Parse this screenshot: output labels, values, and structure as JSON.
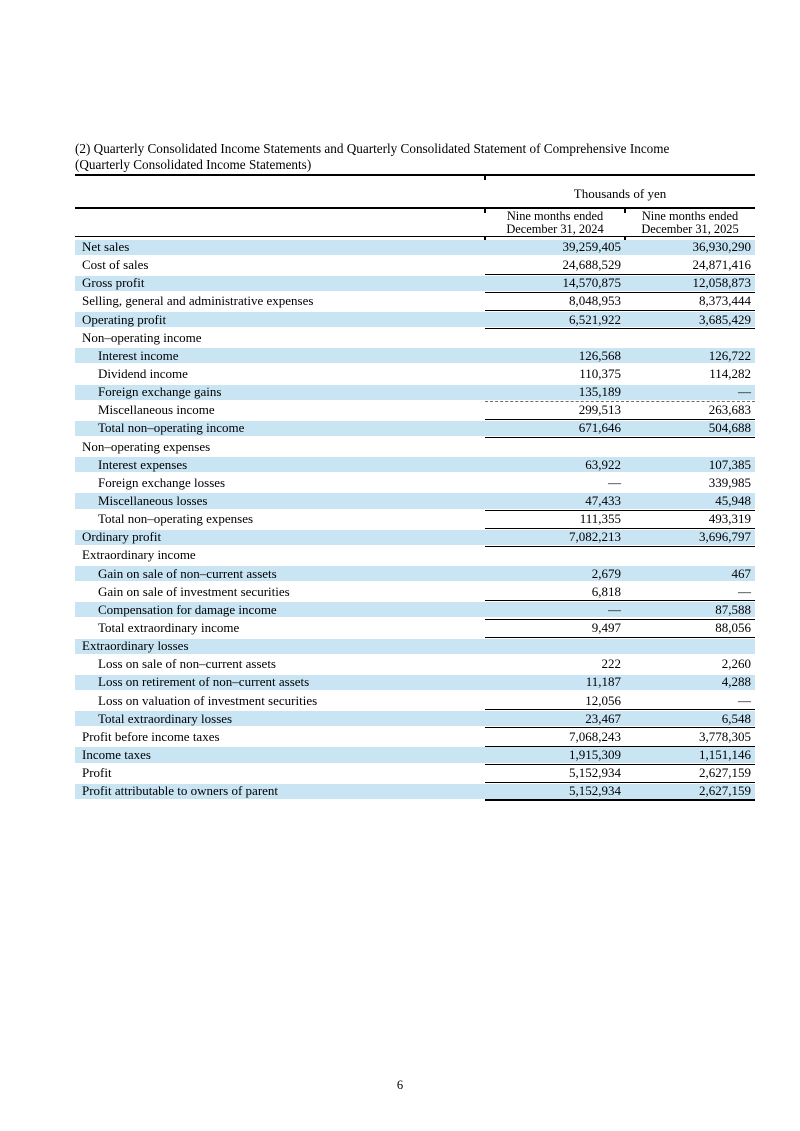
{
  "header": {
    "title_line1": "(2) Quarterly Consolidated Income Statements and Quarterly Consolidated Statement of Comprehensive Income",
    "title_line2": "(Quarterly Consolidated Income Statements)"
  },
  "table": {
    "unit_label": "Thousands of yen",
    "columns": [
      {
        "line1": "Nine months ended",
        "line2": "December 31, 2024"
      },
      {
        "line1": "Nine months ended",
        "line2": "December 31, 2025"
      }
    ],
    "rows": [
      {
        "label": "Net sales",
        "indent": 0,
        "v2024": "39,259,405",
        "v2025": "36,930,290",
        "shaded": true,
        "border": "none"
      },
      {
        "label": "Cost of sales",
        "indent": 0,
        "v2024": "24,688,529",
        "v2025": "24,871,416",
        "shaded": false,
        "border": "solid"
      },
      {
        "label": "Gross profit",
        "indent": 0,
        "v2024": "14,570,875",
        "v2025": "12,058,873",
        "shaded": true,
        "border": "solid"
      },
      {
        "label": "Selling, general and administrative expenses",
        "indent": 0,
        "v2024": "8,048,953",
        "v2025": "8,373,444",
        "shaded": false,
        "border": "solid"
      },
      {
        "label": "Operating profit",
        "indent": 0,
        "v2024": "6,521,922",
        "v2025": "3,685,429",
        "shaded": true,
        "border": "solid"
      },
      {
        "label": "Non–operating income",
        "indent": 0,
        "v2024": "",
        "v2025": "",
        "shaded": false,
        "border": "none"
      },
      {
        "label": "Interest income",
        "indent": 1,
        "v2024": "126,568",
        "v2025": "126,722",
        "shaded": true,
        "border": "none"
      },
      {
        "label": "Dividend income",
        "indent": 1,
        "v2024": "110,375",
        "v2025": "114,282",
        "shaded": false,
        "border": "none"
      },
      {
        "label": "Foreign exchange gains",
        "indent": 1,
        "v2024": "135,189",
        "v2025": "—",
        "shaded": true,
        "border": "dashed"
      },
      {
        "label": "Miscellaneous income",
        "indent": 1,
        "v2024": "299,513",
        "v2025": "263,683",
        "shaded": false,
        "border": "solid"
      },
      {
        "label": "Total non–operating income",
        "indent": 1,
        "v2024": "671,646",
        "v2025": "504,688",
        "shaded": true,
        "border": "solid"
      },
      {
        "label": "Non–operating expenses",
        "indent": 0,
        "v2024": "",
        "v2025": "",
        "shaded": false,
        "border": "none"
      },
      {
        "label": "Interest expenses",
        "indent": 1,
        "v2024": "63,922",
        "v2025": "107,385",
        "shaded": true,
        "border": "none"
      },
      {
        "label": "Foreign exchange losses",
        "indent": 1,
        "v2024": "—",
        "v2025": "339,985",
        "shaded": false,
        "border": "none"
      },
      {
        "label": "Miscellaneous losses",
        "indent": 1,
        "v2024": "47,433",
        "v2025": "45,948",
        "shaded": true,
        "border": "solid"
      },
      {
        "label": "Total non–operating expenses",
        "indent": 1,
        "v2024": "111,355",
        "v2025": "493,319",
        "shaded": false,
        "border": "solid"
      },
      {
        "label": "Ordinary profit",
        "indent": 0,
        "v2024": "7,082,213",
        "v2025": "3,696,797",
        "shaded": true,
        "border": "solid"
      },
      {
        "label": "Extraordinary income",
        "indent": 0,
        "v2024": "",
        "v2025": "",
        "shaded": false,
        "border": "none"
      },
      {
        "label": "Gain on sale of non–current assets",
        "indent": 1,
        "v2024": "2,679",
        "v2025": "467",
        "shaded": true,
        "border": "none"
      },
      {
        "label": "Gain on sale of investment securities",
        "indent": 1,
        "v2024": "6,818",
        "v2025": "—",
        "shaded": false,
        "border": "solid"
      },
      {
        "label": "Compensation for damage income",
        "indent": 1,
        "v2024": "—",
        "v2025": "87,588",
        "shaded": true,
        "border": "solid"
      },
      {
        "label": "Total extraordinary income",
        "indent": 1,
        "v2024": "9,497",
        "v2025": "88,056",
        "shaded": false,
        "border": "solid"
      },
      {
        "label": "Extraordinary losses",
        "indent": 0,
        "v2024": "",
        "v2025": "",
        "shaded": true,
        "border": "none"
      },
      {
        "label": "Loss on sale of non–current assets",
        "indent": 1,
        "v2024": "222",
        "v2025": "2,260",
        "shaded": false,
        "border": "none"
      },
      {
        "label": "Loss on retirement of non–current assets",
        "indent": 1,
        "v2024": "11,187",
        "v2025": "4,288",
        "shaded": true,
        "border": "none"
      },
      {
        "label": "Loss on valuation of investment securities",
        "indent": 1,
        "v2024": "12,056",
        "v2025": "—",
        "shaded": false,
        "border": "solid"
      },
      {
        "label": "Total extraordinary losses",
        "indent": 1,
        "v2024": "23,467",
        "v2025": "6,548",
        "shaded": true,
        "border": "solid"
      },
      {
        "label": "Profit before income taxes",
        "indent": 0,
        "v2024": "7,068,243",
        "v2025": "3,778,305",
        "shaded": false,
        "border": "solid"
      },
      {
        "label": "Income taxes",
        "indent": 0,
        "v2024": "1,915,309",
        "v2025": "1,151,146",
        "shaded": true,
        "border": "solid"
      },
      {
        "label": "Profit",
        "indent": 0,
        "v2024": "5,152,934",
        "v2025": "2,627,159",
        "shaded": false,
        "border": "solid"
      },
      {
        "label": "Profit attributable to owners of parent",
        "indent": 0,
        "v2024": "5,152,934",
        "v2025": "2,627,159",
        "shaded": true,
        "border": "final"
      }
    ]
  },
  "footer": {
    "page_number": "6"
  },
  "colors": {
    "row_shade": "#c9e5f4",
    "rule_color": "#000000",
    "dashed_rule_color": "#6b6b6b"
  }
}
